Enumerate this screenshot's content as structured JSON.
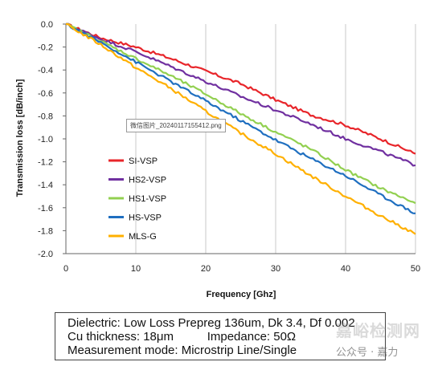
{
  "chart_data": {
    "type": "line",
    "xlabel": "Frequency [Ghz]",
    "ylabel": "Transmission loss [dB/inch]",
    "xlim": [
      0,
      50
    ],
    "ylim": [
      -2.0,
      0.0
    ],
    "x_ticks": [
      "0",
      "10",
      "20",
      "30",
      "40",
      "50"
    ],
    "y_ticks": [
      "0.0",
      "-0.2",
      "-0.4",
      "-0.6",
      "-0.8",
      "-1.0",
      "-1.2",
      "-1.4",
      "-1.6",
      "-1.8",
      "-2.0"
    ],
    "grid": "vertical",
    "legend_position": "left",
    "series": [
      {
        "name": "SI-VSP",
        "color": "#e8252a",
        "x": [
          0,
          5,
          10,
          15,
          20,
          25,
          30,
          35,
          40,
          45,
          50
        ],
        "values": [
          0.0,
          -0.12,
          -0.2,
          -0.3,
          -0.41,
          -0.52,
          -0.66,
          -0.79,
          -0.88,
          -1.0,
          -1.13
        ]
      },
      {
        "name": "HS2-VSP",
        "color": "#7030a0",
        "x": [
          0,
          5,
          10,
          15,
          20,
          25,
          30,
          35,
          40,
          45,
          50
        ],
        "values": [
          0.0,
          -0.13,
          -0.24,
          -0.37,
          -0.5,
          -0.63,
          -0.75,
          -0.87,
          -1.0,
          -1.11,
          -1.23
        ]
      },
      {
        "name": "HS1-VSP",
        "color": "#92d050",
        "x": [
          0,
          5,
          10,
          15,
          20,
          25,
          30,
          35,
          40,
          45,
          50
        ],
        "values": [
          0.0,
          -0.15,
          -0.3,
          -0.45,
          -0.61,
          -0.78,
          -0.94,
          -1.09,
          -1.27,
          -1.43,
          -1.56
        ]
      },
      {
        "name": "HS-VSP",
        "color": "#1f6fc0",
        "x": [
          0,
          5,
          10,
          15,
          20,
          25,
          30,
          35,
          40,
          45,
          50
        ],
        "values": [
          0.0,
          -0.16,
          -0.33,
          -0.5,
          -0.67,
          -0.84,
          -1.01,
          -1.17,
          -1.32,
          -1.49,
          -1.65
        ]
      },
      {
        "name": "MLS-G",
        "color": "#ffb000",
        "x": [
          0,
          5,
          10,
          15,
          20,
          25,
          30,
          35,
          40,
          45,
          50
        ],
        "values": [
          0.0,
          -0.18,
          -0.38,
          -0.56,
          -0.76,
          -0.95,
          -1.13,
          -1.32,
          -1.5,
          -1.67,
          -1.83
        ]
      }
    ]
  },
  "file_label": "微信图片_20240117155412.png",
  "info": {
    "line1": "Dielectric: Low Loss Prepreg 136um, Dk 3.4, Df 0.002",
    "line2": "Cu thickness: 18μm          Impedance: 50Ω",
    "line3": "Measurement mode: Microstrip Line/Single"
  },
  "watermark": {
    "text": "嘉峪检测网",
    "sub": "公众号 · 嘉力"
  }
}
